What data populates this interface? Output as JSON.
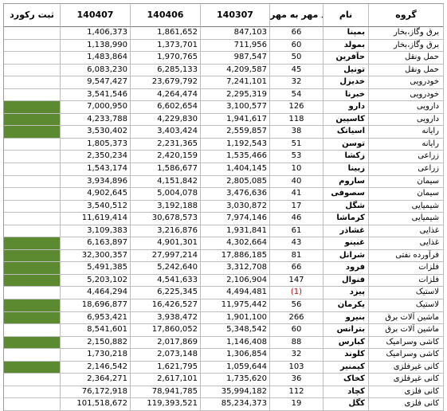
{
  "headers": {
    "record": "ثبت رکورد",
    "p140407": "140407",
    "p140406": "140406",
    "p140307": "140307",
    "growth": "رشد مهر به مهر",
    "name": "نام",
    "group": "گروه"
  },
  "colors": {
    "record_fill": "#5b8a30",
    "negative": "#c00000"
  },
  "rows": [
    {
      "group": "برق وگاز،بخار",
      "name": "بمپنا",
      "growth": "66",
      "p140307": "847,103",
      "p140406": "1,861,652",
      "p140407": "1,406,373",
      "record": false
    },
    {
      "group": "برق وگاز،بخار",
      "name": "بمولد",
      "growth": "60",
      "p140307": "711,956",
      "p140406": "1,373,701",
      "p140407": "1,138,990",
      "record": false
    },
    {
      "group": "حمل ونقل",
      "name": "حآفرین",
      "growth": "50",
      "p140307": "987,547",
      "p140406": "1,970,765",
      "p140407": "1,483,864",
      "record": false
    },
    {
      "group": "حمل ونقل",
      "name": "تونیل",
      "growth": "45",
      "p140307": "4,209,587",
      "p140406": "6,285,133",
      "p140407": "6,083,230",
      "record": false
    },
    {
      "group": "خودرویی",
      "name": "خدیزل",
      "growth": "32",
      "p140307": "7,241,101",
      "p140406": "23,679,792",
      "p140407": "9,547,427",
      "record": false
    },
    {
      "group": "خودرویی",
      "name": "خبرنا",
      "growth": "54",
      "p140307": "2,295,319",
      "p140406": "4,264,474",
      "p140407": "3,541,546",
      "record": false
    },
    {
      "group": "دارویی",
      "name": "دارو",
      "growth": "126",
      "p140307": "3,100,577",
      "p140406": "6,602,654",
      "p140407": "7,000,950",
      "record": true
    },
    {
      "group": "دارویی",
      "name": "کاسپین",
      "growth": "118",
      "p140307": "1,941,617",
      "p140406": "4,229,830",
      "p140407": "4,233,788",
      "record": true
    },
    {
      "group": "رایانه",
      "name": "اسیاتک",
      "growth": "38",
      "p140307": "2,559,857",
      "p140406": "3,403,424",
      "p140407": "3,530,402",
      "record": true
    },
    {
      "group": "رایانه",
      "name": "توسن",
      "growth": "51",
      "p140307": "1,192,543",
      "p140406": "2,231,365",
      "p140407": "1,805,373",
      "record": false
    },
    {
      "group": "زراعی",
      "name": "زکشا",
      "growth": "53",
      "p140307": "1,535,466",
      "p140406": "2,420,159",
      "p140407": "2,350,234",
      "record": false
    },
    {
      "group": "زراعی",
      "name": "زبینا",
      "growth": "10",
      "p140307": "1,404,145",
      "p140406": "1,586,677",
      "p140407": "1,543,174",
      "record": false
    },
    {
      "group": "سیمان",
      "name": "ساروم",
      "growth": "40",
      "p140307": "2,805,085",
      "p140406": "4,151,842",
      "p140407": "3,934,896",
      "record": false
    },
    {
      "group": "سیمان",
      "name": "سصوفی",
      "growth": "41",
      "p140307": "3,476,636",
      "p140406": "5,004,078",
      "p140407": "4,902,645",
      "record": false
    },
    {
      "group": "شیمیایی",
      "name": "شگل",
      "growth": "17",
      "p140307": "3,030,872",
      "p140406": "3,192,188",
      "p140407": "3,540,512",
      "record": false
    },
    {
      "group": "شیمیایی",
      "name": "کرماشا",
      "growth": "46",
      "p140307": "7,974,146",
      "p140406": "30,678,573",
      "p140407": "11,619,414",
      "record": false
    },
    {
      "group": "غذایی",
      "name": "غشاذر",
      "growth": "61",
      "p140307": "1,931,841",
      "p140406": "3,216,876",
      "p140407": "3,109,383",
      "record": false
    },
    {
      "group": "غذایی",
      "name": "غبینو",
      "growth": "43",
      "p140307": "4,302,664",
      "p140406": "4,901,301",
      "p140407": "6,163,897",
      "record": true
    },
    {
      "group": "فرآورده نفتی",
      "name": "شرانل",
      "growth": "81",
      "p140307": "17,886,185",
      "p140406": "27,997,214",
      "p140407": "32,300,357",
      "record": true
    },
    {
      "group": "فلزات",
      "name": "فرود",
      "growth": "66",
      "p140307": "3,312,708",
      "p140406": "5,242,640",
      "p140407": "5,491,385",
      "record": true
    },
    {
      "group": "فلزات",
      "name": "فنوال",
      "growth": "147",
      "p140307": "2,106,904",
      "p140406": "4,541,633",
      "p140407": "5,203,102",
      "record": true
    },
    {
      "group": "لاستیک",
      "name": "پیزد",
      "growth": "(1)",
      "neg": true,
      "p140307": "4,494,481",
      "p140406": "6,225,345",
      "p140407": "4,464,294",
      "record": false
    },
    {
      "group": "لاستیک",
      "name": "یکرمان",
      "growth": "56",
      "p140307": "11,975,442",
      "p140406": "16,426,527",
      "p140407": "18,696,877",
      "record": true
    },
    {
      "group": "ماشین آلات برق",
      "name": "بنیرو",
      "growth": "266",
      "p140307": "1,901,100",
      "p140406": "3,938,472",
      "p140407": "6,953,421",
      "record": true
    },
    {
      "group": "ماشین آلات برق",
      "name": "بترانس",
      "growth": "60",
      "p140307": "5,348,542",
      "p140406": "17,860,052",
      "p140407": "8,541,601",
      "record": false
    },
    {
      "group": "کاشی وسرامیک",
      "name": "کبارس",
      "growth": "88",
      "p140307": "1,146,408",
      "p140406": "2,017,869",
      "p140407": "2,150,882",
      "record": true
    },
    {
      "group": "کاشی وسرامیک",
      "name": "کلوند",
      "growth": "32",
      "p140307": "1,306,854",
      "p140406": "2,073,148",
      "p140407": "1,730,218",
      "record": false
    },
    {
      "group": "کانی غیرفلزی",
      "name": "کیمنیر",
      "growth": "103",
      "p140307": "1,059,644",
      "p140406": "1,621,795",
      "p140407": "2,146,542",
      "record": true
    },
    {
      "group": "کانی غیرفلزی",
      "name": "کخاک",
      "growth": "36",
      "p140307": "1,735,620",
      "p140406": "2,617,101",
      "p140407": "2,364,271",
      "record": false
    },
    {
      "group": "کانی فلزی",
      "name": "کچاد",
      "growth": "112",
      "p140307": "35,994,182",
      "p140406": "78,941,785",
      "p140407": "76,172,918",
      "record": false
    },
    {
      "group": "کانی فلزی",
      "name": "کگل",
      "growth": "19",
      "p140307": "85,234,373",
      "p140406": "119,393,521",
      "p140407": "101,518,672",
      "record": false
    }
  ]
}
